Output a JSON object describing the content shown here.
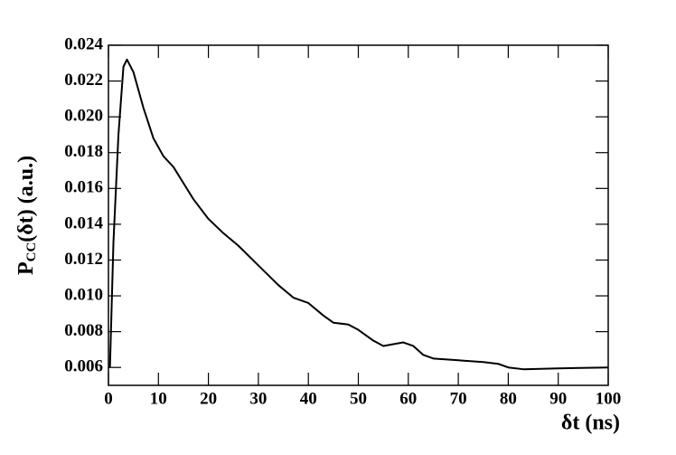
{
  "chart_data": {
    "type": "line",
    "x_label": "δt (ns)",
    "y_label": {
      "main": "P",
      "sub": "CC",
      "rest": "(δt) (a.u.)"
    },
    "x": [
      0.3,
      1,
      2,
      3,
      3.7,
      5,
      7,
      9,
      11,
      13,
      15,
      17,
      20,
      23,
      26,
      30,
      34,
      37,
      40,
      43,
      45,
      48,
      50,
      53,
      55,
      57,
      59,
      61,
      63,
      65,
      70,
      75,
      78,
      80,
      83,
      90,
      100
    ],
    "series": [
      {
        "color": "#000000",
        "values": [
          0.006,
          0.013,
          0.019,
          0.0228,
          0.0232,
          0.0225,
          0.0205,
          0.0188,
          0.0178,
          0.0172,
          0.0163,
          0.0154,
          0.0143,
          0.0135,
          0.0128,
          0.0117,
          0.0106,
          0.0099,
          0.0096,
          0.0089,
          0.0085,
          0.0084,
          0.0081,
          0.0075,
          0.0072,
          0.0073,
          0.0074,
          0.0072,
          0.0067,
          0.0065,
          0.0064,
          0.0063,
          0.0062,
          0.006,
          0.0059,
          0.00595,
          0.006
        ]
      }
    ],
    "xlim": [
      0,
      100
    ],
    "ylim": [
      0.005,
      0.024
    ],
    "xticks": [
      0,
      10,
      20,
      30,
      40,
      50,
      60,
      70,
      80,
      90,
      100
    ],
    "yticks": [
      0.006,
      0.008,
      {
        "value": 0.01,
        "label": "0.010"
      },
      0.012,
      0.014,
      0.016,
      0.018,
      {
        "value": 0.02,
        "label": "0.020"
      },
      0.022,
      0.024
    ],
    "grid": false
  }
}
